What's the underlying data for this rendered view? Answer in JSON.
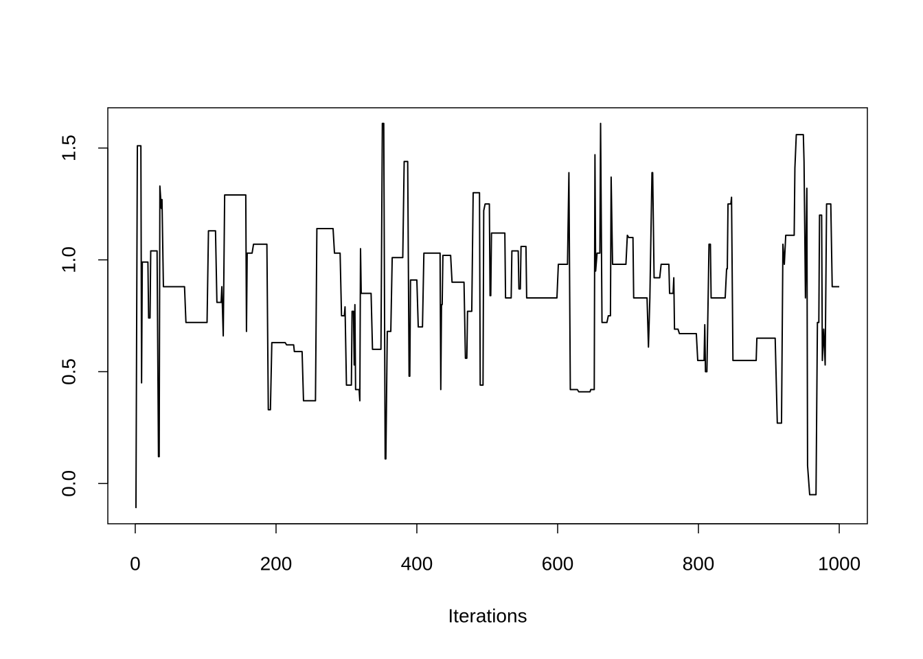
{
  "chart_data": {
    "type": "line",
    "xlabel": "Iterations",
    "x": [
      1,
      3,
      8,
      9,
      10,
      18,
      19,
      21,
      22,
      31,
      33,
      34,
      35,
      37,
      38,
      40,
      70,
      72,
      102,
      104,
      114,
      116,
      122,
      123,
      125,
      127,
      157,
      158,
      159,
      166,
      168,
      187,
      189,
      192,
      194,
      213,
      215,
      225,
      226,
      237,
      239,
      256,
      258,
      281,
      283,
      291,
      293,
      297,
      298,
      300,
      307,
      308,
      310,
      311,
      312,
      313,
      318,
      319,
      320,
      321,
      335,
      337,
      349,
      351,
      353,
      355,
      356,
      358,
      363,
      365,
      380,
      382,
      387,
      389,
      390,
      391,
      400,
      402,
      408,
      410,
      433,
      434,
      435,
      436,
      437,
      448,
      450,
      467,
      469,
      471,
      472,
      478,
      480,
      489,
      490,
      494,
      495,
      497,
      503,
      504,
      505,
      506,
      525,
      526,
      534,
      535,
      544,
      545,
      547,
      548,
      555,
      556,
      599,
      601,
      614,
      616,
      618,
      628,
      630,
      646,
      647,
      652,
      653,
      654,
      656,
      660,
      661,
      663,
      670,
      672,
      675,
      676,
      678,
      697,
      699,
      701,
      707,
      708,
      727,
      729,
      731,
      734,
      735,
      737,
      745,
      747,
      758,
      759,
      764,
      765,
      766,
      771,
      773,
      797,
      799,
      808,
      809,
      810,
      812,
      814,
      815,
      817,
      818,
      838,
      840,
      841,
      842,
      846,
      847,
      849,
      882,
      883,
      909,
      912,
      918,
      920,
      922,
      924,
      936,
      937,
      939,
      949,
      950,
      952,
      954,
      955,
      958,
      967,
      969,
      971,
      972,
      975,
      976,
      978,
      980,
      982,
      988,
      990,
      1000
    ],
    "values": [
      -0.11,
      1.51,
      1.51,
      0.45,
      0.99,
      0.99,
      0.74,
      0.74,
      1.04,
      1.04,
      0.12,
      0.12,
      1.33,
      1.23,
      1.27,
      0.88,
      0.88,
      0.72,
      0.72,
      1.13,
      1.13,
      0.81,
      0.81,
      0.88,
      0.66,
      1.29,
      1.29,
      0.68,
      1.03,
      1.03,
      1.07,
      1.07,
      0.33,
      0.33,
      0.63,
      0.63,
      0.62,
      0.62,
      0.59,
      0.59,
      0.37,
      0.37,
      1.14,
      1.14,
      1.03,
      1.03,
      0.75,
      0.75,
      0.79,
      0.44,
      0.44,
      0.77,
      0.77,
      0.53,
      0.8,
      0.42,
      0.42,
      0.37,
      1.05,
      0.85,
      0.85,
      0.6,
      0.6,
      1.61,
      1.61,
      0.11,
      0.11,
      0.68,
      0.68,
      1.01,
      1.01,
      1.44,
      1.44,
      0.48,
      0.48,
      0.91,
      0.91,
      0.7,
      0.7,
      1.03,
      1.03,
      0.42,
      0.8,
      0.8,
      1.02,
      1.02,
      0.9,
      0.9,
      0.56,
      0.56,
      0.77,
      0.77,
      1.3,
      1.3,
      0.44,
      0.44,
      1.22,
      1.25,
      1.25,
      0.84,
      0.84,
      1.12,
      1.12,
      0.83,
      0.83,
      1.04,
      1.04,
      0.87,
      0.87,
      1.06,
      1.06,
      0.83,
      0.83,
      0.98,
      0.98,
      1.39,
      0.42,
      0.42,
      0.41,
      0.41,
      0.42,
      0.42,
      1.47,
      0.95,
      1.03,
      1.03,
      1.61,
      0.72,
      0.72,
      0.75,
      0.75,
      1.37,
      0.98,
      0.98,
      1.11,
      1.1,
      1.1,
      0.83,
      0.83,
      0.61,
      0.83,
      1.39,
      1.39,
      0.92,
      0.92,
      0.98,
      0.98,
      0.85,
      0.85,
      0.92,
      0.69,
      0.69,
      0.67,
      0.67,
      0.55,
      0.55,
      0.71,
      0.5,
      0.5,
      0.87,
      1.07,
      1.07,
      0.83,
      0.83,
      0.96,
      0.96,
      1.25,
      1.25,
      1.28,
      0.55,
      0.55,
      0.65,
      0.65,
      0.27,
      0.27,
      1.07,
      0.98,
      1.11,
      1.11,
      1.41,
      1.56,
      1.56,
      1.44,
      0.83,
      1.32,
      0.08,
      -0.05,
      -0.05,
      0.72,
      0.72,
      1.2,
      1.2,
      0.55,
      0.69,
      0.53,
      1.25,
      1.25,
      0.88,
      0.88
    ],
    "color": "#000000",
    "xlim": [
      -38.96,
      1039.96
    ],
    "xticks": [
      0,
      200,
      400,
      600,
      800,
      1000
    ],
    "ylim": [
      -0.18,
      1.68
    ],
    "yticks": [
      {
        "value": 0,
        "label": "0.0"
      },
      {
        "value": 0.5,
        "label": "0.5"
      },
      {
        "value": 1,
        "label": "1.0"
      },
      {
        "value": 1.5,
        "label": "1.5"
      }
    ]
  }
}
